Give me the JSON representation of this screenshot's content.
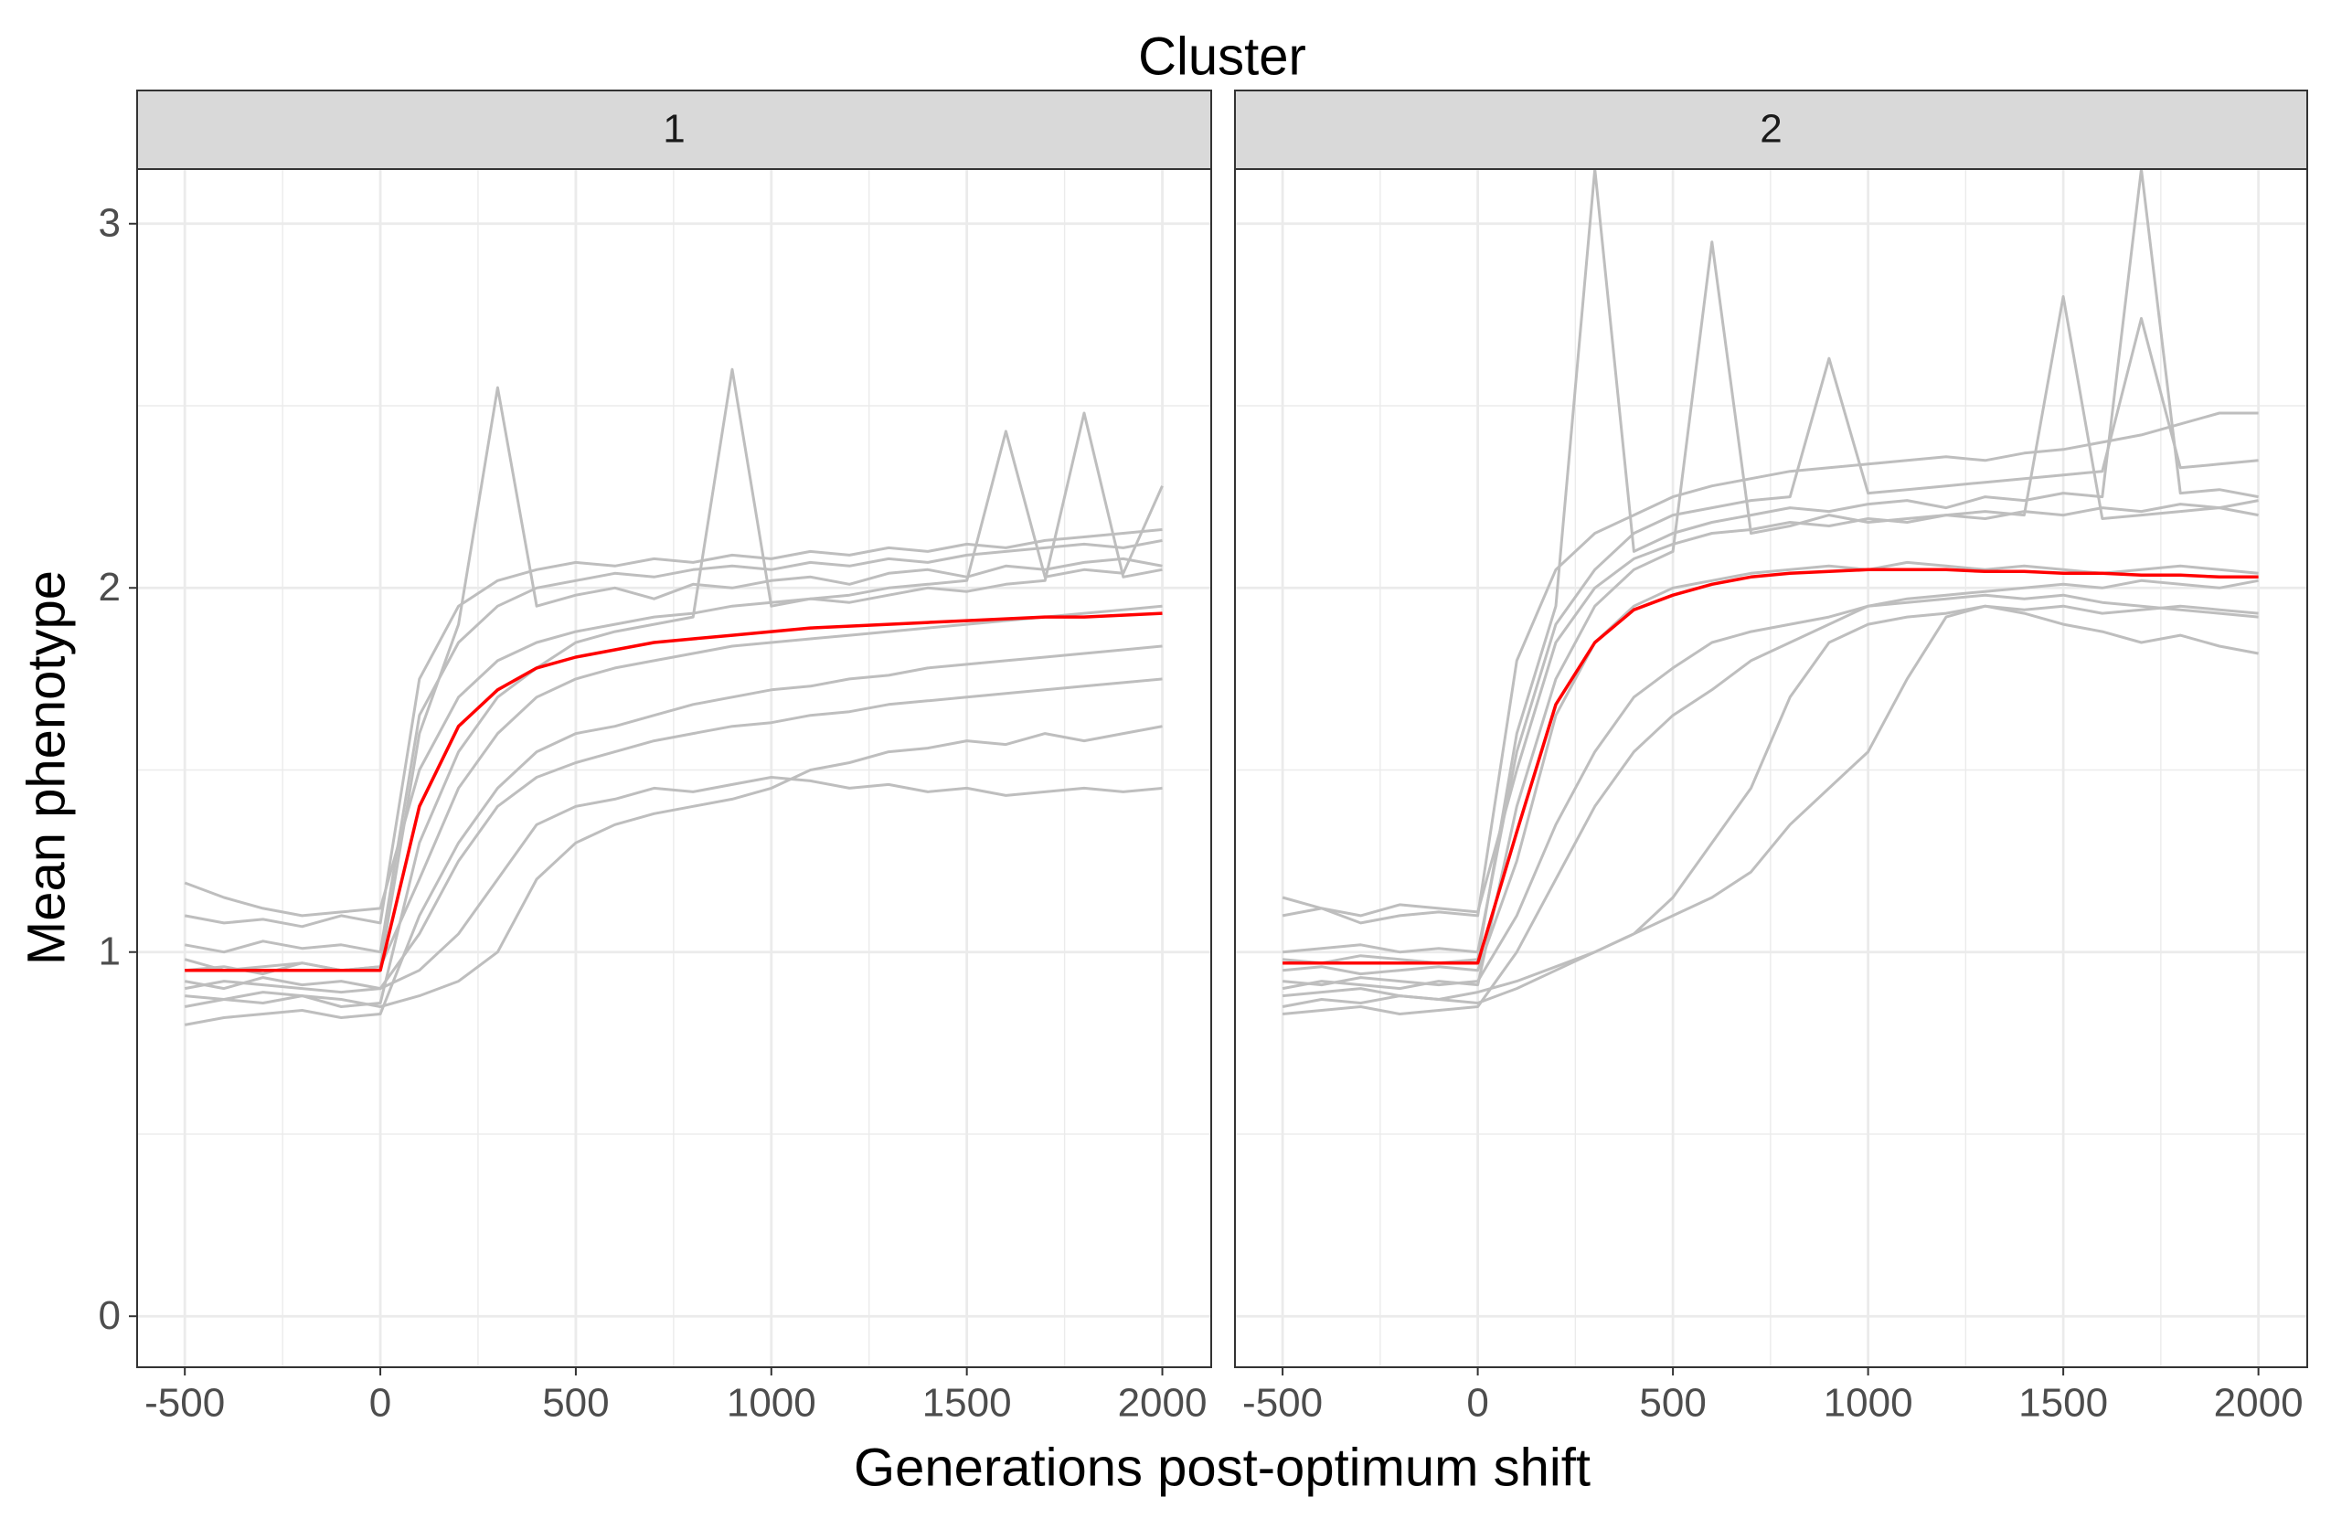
{
  "title": "Cluster",
  "x_label": "Generations post-optimum shift",
  "y_label": "Mean phenotype",
  "chart_data": [
    {
      "type": "line",
      "facet_label": "1",
      "x": [
        -500,
        -400,
        -300,
        -200,
        -100,
        0,
        100,
        200,
        300,
        400,
        500,
        600,
        700,
        800,
        900,
        1000,
        1100,
        1200,
        1300,
        1400,
        1500,
        1600,
        1700,
        1800,
        1900,
        2000
      ],
      "xlim": [
        -622,
        2125
      ],
      "ylim": [
        -0.14,
        3.15
      ],
      "xticks": [
        -500,
        0,
        500,
        1000,
        1500,
        2000
      ],
      "yticks": [
        0,
        1,
        2,
        3
      ],
      "x_minor_grid": [
        -250,
        250,
        750,
        1250,
        1750
      ],
      "y_minor_grid": [
        0.5,
        1.5,
        2.5
      ],
      "grid": true,
      "series": [
        {
          "color": "#bebebe",
          "values": [
            1.1,
            1.08,
            1.09,
            1.07,
            1.1,
            1.08,
            1.75,
            1.95,
            2.02,
            2.05,
            2.07,
            2.06,
            2.08,
            2.07,
            2.09,
            2.08,
            2.1,
            2.09,
            2.11,
            2.1,
            2.12,
            2.11,
            2.13,
            2.14,
            2.15,
            2.16
          ]
        },
        {
          "color": "#bebebe",
          "values": [
            0.98,
            0.95,
            0.96,
            0.97,
            0.95,
            0.96,
            1.6,
            1.9,
            2.55,
            1.95,
            1.98,
            2.0,
            1.97,
            2.01,
            2.0,
            2.02,
            2.03,
            2.01,
            2.04,
            2.05,
            2.03,
            2.06,
            2.05,
            2.07,
            2.08,
            2.06
          ]
        },
        {
          "color": "#bebebe",
          "values": [
            0.85,
            0.87,
            0.86,
            0.88,
            0.85,
            0.86,
            1.3,
            1.55,
            1.7,
            1.78,
            1.85,
            1.88,
            1.9,
            1.92,
            2.6,
            1.95,
            1.97,
            1.96,
            1.98,
            2.0,
            1.99,
            2.01,
            2.02,
            2.48,
            2.03,
            2.05
          ]
        },
        {
          "color": "#bebebe",
          "values": [
            0.9,
            0.92,
            0.91,
            0.9,
            0.89,
            0.9,
            0.95,
            1.05,
            1.2,
            1.35,
            1.4,
            1.42,
            1.45,
            1.44,
            1.46,
            1.48,
            1.47,
            1.45,
            1.46,
            1.44,
            1.45,
            1.43,
            1.44,
            1.45,
            1.44,
            1.45
          ]
        },
        {
          "color": "#bebebe",
          "values": [
            1.19,
            1.15,
            1.12,
            1.1,
            1.11,
            1.12,
            1.5,
            1.7,
            1.8,
            1.85,
            1.88,
            1.9,
            1.92,
            1.93,
            1.95,
            1.96,
            1.97,
            1.98,
            2.0,
            2.01,
            2.02,
            2.43,
            2.03,
            2.05,
            2.04,
            2.28
          ]
        },
        {
          "color": "#bebebe",
          "values": [
            0.8,
            0.82,
            0.83,
            0.84,
            0.82,
            0.83,
            1.1,
            1.3,
            1.45,
            1.55,
            1.6,
            1.62,
            1.65,
            1.68,
            1.7,
            1.72,
            1.73,
            1.75,
            1.76,
            1.78,
            1.79,
            1.8,
            1.81,
            1.82,
            1.83,
            1.84
          ]
        },
        {
          "color": "#bebebe",
          "values": [
            0.95,
            0.96,
            0.94,
            0.97,
            0.95,
            0.96,
            1.2,
            1.45,
            1.6,
            1.7,
            1.75,
            1.78,
            1.8,
            1.82,
            1.84,
            1.85,
            1.86,
            1.87,
            1.88,
            1.89,
            1.9,
            1.91,
            1.92,
            1.93,
            1.94,
            1.95
          ]
        },
        {
          "color": "#bebebe",
          "values": [
            0.88,
            0.87,
            0.89,
            0.88,
            0.87,
            0.85,
            0.88,
            0.92,
            1.0,
            1.2,
            1.3,
            1.35,
            1.38,
            1.4,
            1.42,
            1.45,
            1.5,
            1.52,
            1.55,
            1.56,
            1.58,
            1.57,
            1.6,
            1.58,
            1.6,
            1.62
          ]
        },
        {
          "color": "#bebebe",
          "values": [
            1.02,
            1.0,
            1.03,
            1.01,
            1.02,
            1.0,
            1.65,
            1.85,
            1.95,
            2.0,
            2.02,
            2.04,
            2.03,
            2.05,
            2.06,
            2.05,
            2.07,
            2.06,
            2.08,
            2.07,
            2.09,
            2.1,
            2.11,
            2.12,
            2.11,
            2.13
          ]
        },
        {
          "color": "#bebebe",
          "values": [
            0.92,
            0.9,
            0.93,
            0.91,
            0.92,
            0.9,
            1.05,
            1.25,
            1.4,
            1.48,
            1.52,
            1.55,
            1.58,
            1.6,
            1.62,
            1.63,
            1.65,
            1.66,
            1.68,
            1.69,
            1.7,
            1.71,
            1.72,
            1.73,
            1.74,
            1.75
          ]
        },
        {
          "color": "#ff0000",
          "values": [
            0.95,
            0.95,
            0.95,
            0.95,
            0.95,
            0.95,
            1.4,
            1.62,
            1.72,
            1.78,
            1.81,
            1.83,
            1.85,
            1.86,
            1.87,
            1.88,
            1.89,
            1.895,
            1.9,
            1.905,
            1.91,
            1.915,
            1.92,
            1.92,
            1.925,
            1.93
          ]
        }
      ]
    },
    {
      "type": "line",
      "facet_label": "2",
      "x": [
        -500,
        -400,
        -300,
        -200,
        -100,
        0,
        100,
        200,
        300,
        400,
        500,
        600,
        700,
        800,
        900,
        1000,
        1100,
        1200,
        1300,
        1400,
        1500,
        1600,
        1700,
        1800,
        1900,
        2000
      ],
      "xlim": [
        -622,
        2125
      ],
      "ylim": [
        -0.14,
        3.15
      ],
      "xticks": [
        -500,
        0,
        500,
        1000,
        1500,
        2000
      ],
      "yticks": [
        0,
        1,
        2,
        3
      ],
      "x_minor_grid": [
        -250,
        250,
        750,
        1250,
        1750
      ],
      "y_minor_grid": [
        0.5,
        1.5,
        2.5
      ],
      "grid": true,
      "series": [
        {
          "color": "#bebebe",
          "values": [
            1.1,
            1.12,
            1.08,
            1.1,
            1.11,
            1.1,
            1.8,
            2.05,
            2.15,
            2.2,
            2.25,
            2.28,
            2.3,
            2.32,
            2.33,
            2.34,
            2.35,
            2.36,
            2.35,
            2.37,
            2.38,
            2.4,
            2.42,
            2.45,
            2.48,
            2.48
          ]
        },
        {
          "color": "#bebebe",
          "values": [
            0.98,
            0.97,
            0.99,
            0.98,
            0.97,
            0.98,
            1.6,
            1.95,
            3.15,
            2.1,
            2.15,
            2.18,
            2.2,
            2.22,
            2.21,
            2.23,
            2.24,
            2.22,
            2.25,
            2.24,
            2.26,
            2.25,
            3.15,
            2.26,
            2.27,
            2.25
          ]
        },
        {
          "color": "#bebebe",
          "values": [
            0.9,
            0.92,
            0.91,
            0.9,
            0.92,
            0.91,
            1.4,
            1.75,
            1.95,
            2.05,
            2.1,
            2.95,
            2.15,
            2.17,
            2.2,
            2.18,
            2.19,
            2.2,
            2.21,
            2.2,
            2.8,
            2.19,
            2.2,
            2.21,
            2.22,
            2.2
          ]
        },
        {
          "color": "#bebebe",
          "values": [
            0.85,
            0.87,
            0.86,
            0.88,
            0.87,
            0.86,
            0.9,
            0.95,
            1.0,
            1.05,
            1.15,
            1.3,
            1.45,
            1.7,
            1.85,
            1.9,
            1.92,
            1.93,
            1.95,
            1.94,
            1.95,
            1.93,
            1.94,
            1.95,
            1.94,
            1.93
          ]
        },
        {
          "color": "#bebebe",
          "values": [
            0.88,
            0.89,
            0.9,
            0.88,
            0.87,
            0.89,
            0.92,
            0.96,
            1.0,
            1.05,
            1.1,
            1.15,
            1.22,
            1.35,
            1.45,
            1.55,
            1.75,
            1.92,
            1.95,
            1.93,
            1.9,
            1.88,
            1.85,
            1.87,
            1.84,
            1.82
          ]
        },
        {
          "color": "#bebebe",
          "values": [
            1.15,
            1.12,
            1.1,
            1.13,
            1.12,
            1.11,
            1.5,
            1.85,
            2.0,
            2.08,
            2.12,
            2.15,
            2.16,
            2.18,
            2.17,
            2.19,
            2.18,
            2.2,
            2.19,
            2.21,
            2.2,
            2.22,
            2.21,
            2.23,
            2.22,
            2.24
          ]
        },
        {
          "color": "#bebebe",
          "values": [
            0.95,
            0.96,
            0.94,
            0.95,
            0.96,
            0.95,
            1.25,
            1.65,
            1.85,
            1.95,
            2.0,
            2.02,
            2.04,
            2.05,
            2.06,
            2.05,
            2.07,
            2.06,
            2.05,
            2.06,
            2.05,
            2.04,
            2.05,
            2.06,
            2.05,
            2.04
          ]
        },
        {
          "color": "#bebebe",
          "values": [
            0.83,
            0.84,
            0.85,
            0.83,
            0.84,
            0.85,
            1.0,
            1.2,
            1.4,
            1.55,
            1.65,
            1.72,
            1.8,
            1.85,
            1.9,
            1.95,
            1.97,
            1.98,
            1.99,
            2.0,
            2.01,
            2.0,
            2.02,
            2.01,
            2.0,
            2.02
          ]
        },
        {
          "color": "#bebebe",
          "values": [
            1.0,
            1.01,
            1.02,
            1.0,
            1.01,
            1.0,
            1.55,
            1.9,
            2.05,
            2.15,
            2.2,
            2.22,
            2.24,
            2.25,
            2.63,
            2.26,
            2.27,
            2.28,
            2.29,
            2.3,
            2.31,
            2.32,
            2.74,
            2.33,
            2.34,
            2.35
          ]
        },
        {
          "color": "#bebebe",
          "values": [
            0.92,
            0.91,
            0.93,
            0.92,
            0.91,
            0.92,
            1.1,
            1.35,
            1.55,
            1.7,
            1.78,
            1.85,
            1.88,
            1.9,
            1.92,
            1.95,
            1.96,
            1.97,
            1.98,
            1.97,
            1.98,
            1.96,
            1.95,
            1.94,
            1.93,
            1.92
          ]
        },
        {
          "color": "#ff0000",
          "values": [
            0.97,
            0.97,
            0.97,
            0.97,
            0.97,
            0.97,
            1.33,
            1.68,
            1.85,
            1.94,
            1.98,
            2.01,
            2.03,
            2.04,
            2.045,
            2.05,
            2.05,
            2.05,
            2.045,
            2.045,
            2.04,
            2.04,
            2.035,
            2.035,
            2.03,
            2.03
          ]
        }
      ]
    }
  ]
}
